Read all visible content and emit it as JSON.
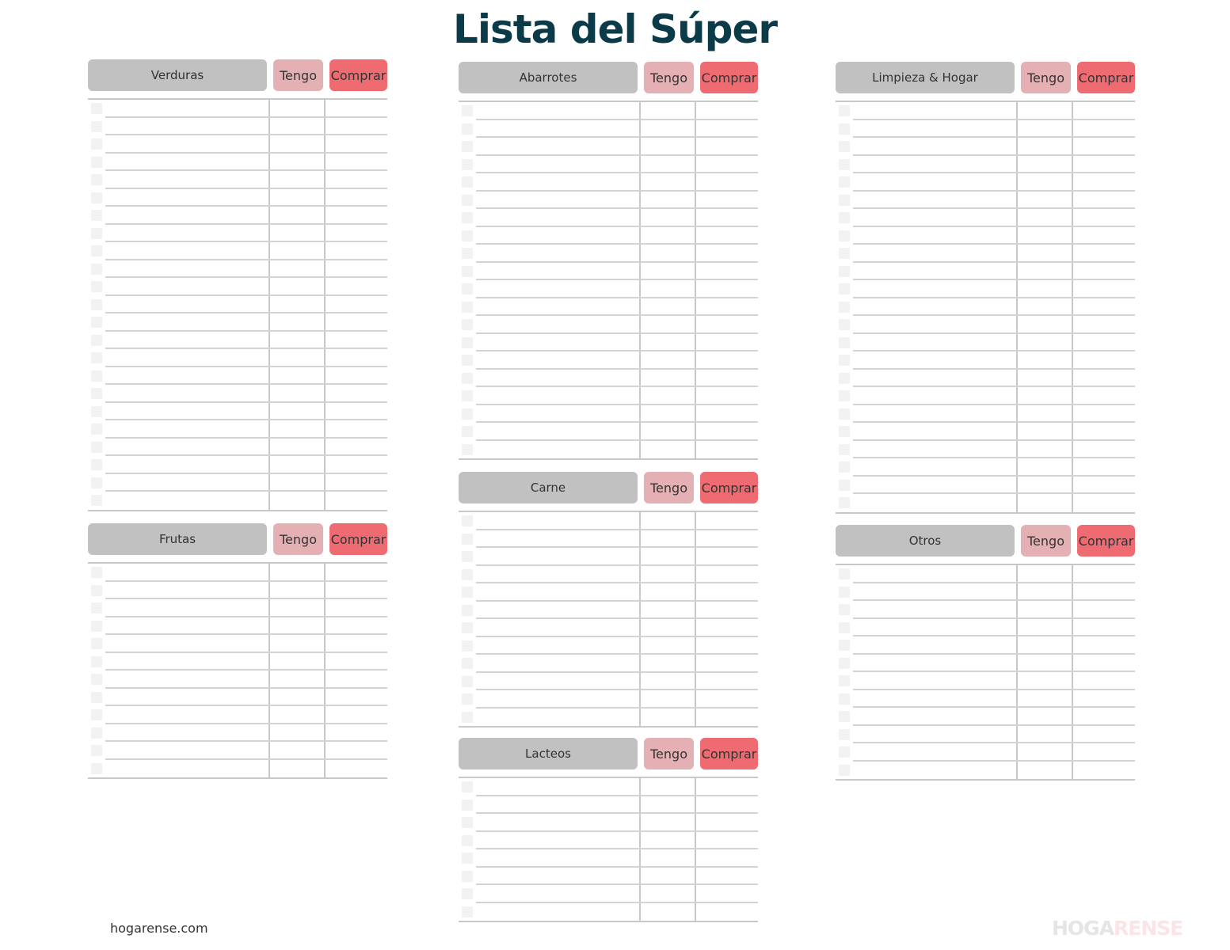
{
  "title": "Lista del Súper",
  "sections": [
    {
      "name": "Verduras",
      "tengo": "Tengo",
      "comprar": "Comprar"
    },
    {
      "name": "Frutas",
      "tengo": "Tengo",
      "comprar": "Comprar"
    },
    {
      "name": "Abarrotes",
      "tengo": "Tengo",
      "comprar": "Comprar"
    },
    {
      "name": "Carne",
      "tengo": "Tengo",
      "comprar": "Comprar"
    },
    {
      "name": "Lacteos",
      "tengo": "Tengo",
      "comprar": "Comprar"
    },
    {
      "name": "Limpieza & Hogar",
      "tengo": "Tengo",
      "comprar": "Comprar"
    },
    {
      "name": "Otros",
      "tengo": "Tengo",
      "comprar": "Comprar"
    }
  ],
  "footer": "hogarense.com",
  "logo": {
    "part1": "HOGA",
    "part2": "RENSE"
  },
  "colors": {
    "title": "#0b3a48",
    "header": "#c0c1c0",
    "tengo": "#e4b0b3",
    "comprar": "#ee6b72"
  }
}
